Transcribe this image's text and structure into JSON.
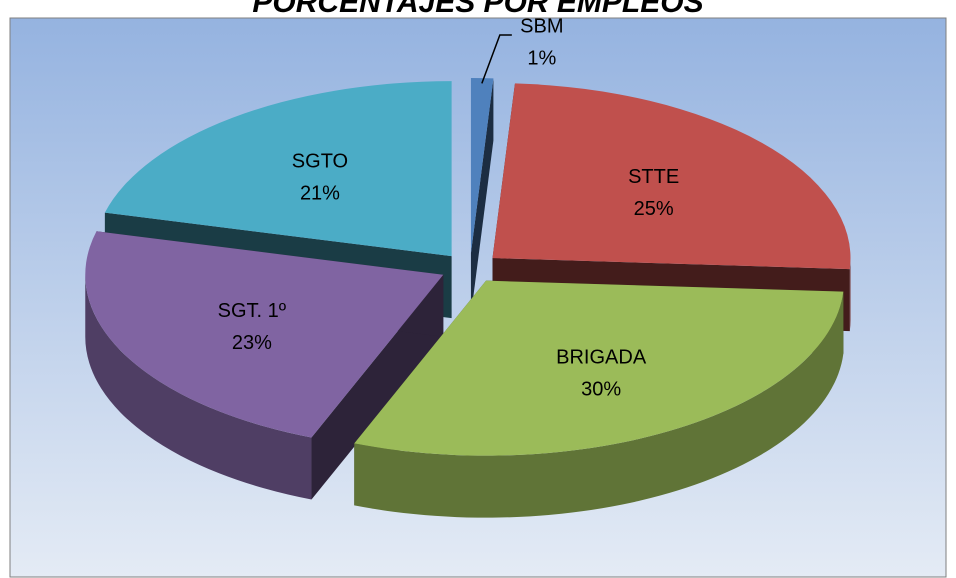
{
  "chart_data": {
    "type": "pie",
    "title": "PORCENTAJES POR EMPLEOS",
    "categories": [
      "SBM",
      "STTE",
      "BRIGADA",
      "SGT. 1º",
      "SGTO"
    ],
    "values": [
      1,
      25,
      30,
      23,
      21
    ],
    "value_labels": [
      "1%",
      "25%",
      "30%",
      "23%",
      "21%"
    ],
    "colors": [
      "#4f81bd",
      "#c0504d",
      "#9bbb59",
      "#8064a2",
      "#4bacc6"
    ]
  }
}
